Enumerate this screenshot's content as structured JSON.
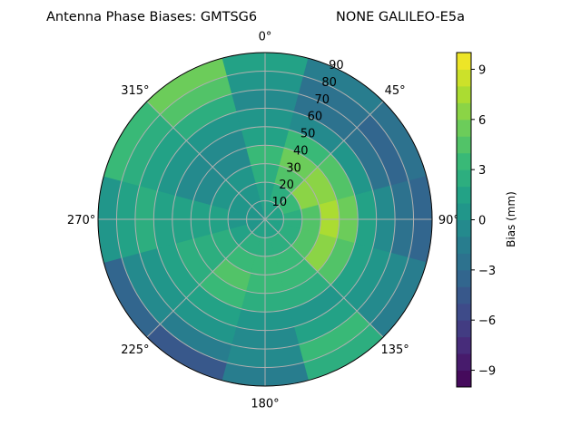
{
  "chart_data": {
    "type": "heatmap",
    "subtype": "polar-contour",
    "title_left": "Antenna Phase Biases: GMTSG6",
    "title_right": "NONE GALILEO-E5a",
    "colorbar_label": "Bias (mm)",
    "colormap": "viridis",
    "color_range": [
      -10,
      10
    ],
    "color_levels": 20,
    "colorbar_ticks": [
      "−9",
      "−6",
      "−3",
      "0",
      "3",
      "6",
      "9"
    ],
    "colorbar_tick_values": [
      -9,
      -6,
      -3,
      0,
      3,
      6,
      9
    ],
    "angular_tick_labels": [
      "0°",
      "45°",
      "90°",
      "135°",
      "180°",
      "225°",
      "270°",
      "315°"
    ],
    "angular_tick_values": [
      0,
      45,
      90,
      135,
      180,
      225,
      270,
      315
    ],
    "radial_tick_labels": [
      "10",
      "20",
      "30",
      "40",
      "50",
      "60",
      "70",
      "80",
      "90"
    ],
    "radial_tick_values": [
      10,
      20,
      30,
      40,
      50,
      60,
      70,
      80,
      90
    ],
    "radial_range": [
      0,
      90
    ],
    "theta_zero": "top",
    "theta_direction": "clockwise",
    "grid": true,
    "azimuth": [
      0,
      30,
      60,
      90,
      120,
      150,
      180,
      210,
      240,
      270,
      300,
      330
    ],
    "zenith": [
      5,
      15,
      25,
      35,
      45,
      55,
      65,
      75,
      85
    ],
    "values": [
      [
        1,
        1,
        2,
        3,
        1,
        0,
        -1,
        0,
        1
      ],
      [
        1,
        2,
        4,
        5,
        3,
        -1,
        -3,
        -3,
        -2
      ],
      [
        1,
        3,
        6,
        6,
        4,
        0,
        -3,
        -4,
        -3
      ],
      [
        1,
        2,
        4,
        7,
        5,
        1,
        -1,
        -3,
        -4
      ],
      [
        1,
        2,
        4,
        6,
        4,
        1,
        0,
        -1,
        -2
      ],
      [
        1,
        2,
        3,
        3,
        2,
        0,
        1,
        3,
        2
      ],
      [
        1,
        2,
        3,
        3,
        2,
        0,
        -1,
        -1,
        -2
      ],
      [
        1,
        2,
        3,
        4,
        3,
        1,
        0,
        -2,
        -5
      ],
      [
        0,
        1,
        2,
        2,
        2,
        1,
        0,
        -1,
        -4
      ],
      [
        0,
        0,
        1,
        1,
        1,
        1,
        2,
        1,
        0
      ],
      [
        0,
        0,
        0,
        -1,
        -1,
        0,
        1,
        2,
        3
      ],
      [
        0,
        0,
        0,
        -1,
        -1,
        0,
        2,
        4,
        5
      ]
    ]
  }
}
